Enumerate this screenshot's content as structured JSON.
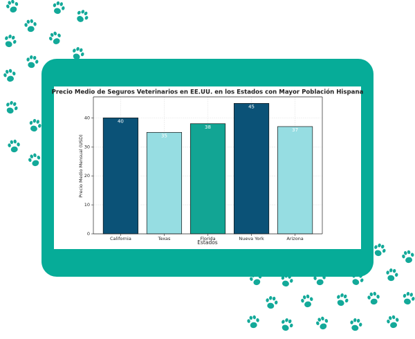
{
  "chart_data": {
    "type": "bar",
    "title": "Precio Medio de Seguros Veterinarios en EE.UU. en los Estados con Mayor Población Hispana",
    "x_label": "Estados",
    "y_label": "Precio Medio Mensual (USD)",
    "categories": [
      "California",
      "Texas",
      "Florida",
      "Nueva York",
      "Arizona"
    ],
    "values": [
      40,
      35,
      38,
      45,
      37
    ],
    "colors": [
      "#0b5277",
      "#96dde2",
      "#12a594",
      "#0b5277",
      "#96dde2"
    ],
    "ylim": [
      0,
      47.25
    ],
    "yticks": [
      0,
      10,
      20,
      30,
      40
    ],
    "grid": true
  }
}
